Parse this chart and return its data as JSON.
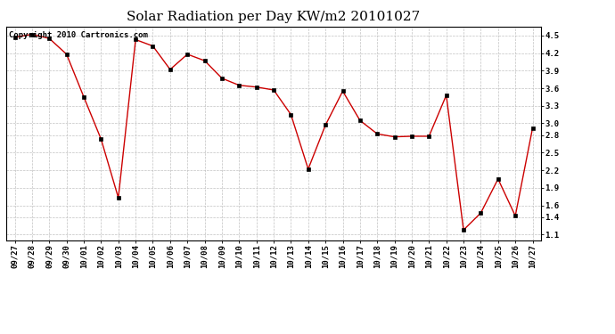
{
  "title": "Solar Radiation per Day KW/m2 20101027",
  "copyright_text": "Copyright 2010 Cartronics.com",
  "x_labels": [
    "09/27",
    "09/28",
    "09/29",
    "09/30",
    "10/01",
    "10/02",
    "10/03",
    "10/04",
    "10/05",
    "10/06",
    "10/07",
    "10/08",
    "10/09",
    "10/10",
    "10/11",
    "10/12",
    "10/13",
    "10/14",
    "10/15",
    "10/16",
    "10/17",
    "10/18",
    "10/19",
    "10/20",
    "10/21",
    "10/22",
    "10/23",
    "10/24",
    "10/25",
    "10/26",
    "10/27"
  ],
  "y_values": [
    4.47,
    4.52,
    4.45,
    4.18,
    3.45,
    2.73,
    1.73,
    4.43,
    4.32,
    3.92,
    4.18,
    4.07,
    3.77,
    3.65,
    3.62,
    3.57,
    3.15,
    2.22,
    2.97,
    3.55,
    3.05,
    2.82,
    2.77,
    2.78,
    2.78,
    3.48,
    1.18,
    1.47,
    2.05,
    1.42,
    2.92
  ],
  "line_color": "#cc0000",
  "marker": "s",
  "marker_size": 2.5,
  "marker_color": "#000000",
  "bg_color": "#ffffff",
  "plot_bg_color": "#ffffff",
  "grid_color": "#bbbbbb",
  "ylim": [
    1.0,
    4.65
  ],
  "yticks": [
    1.1,
    1.4,
    1.6,
    1.9,
    2.2,
    2.5,
    2.8,
    3.0,
    3.3,
    3.6,
    3.9,
    4.2,
    4.5
  ],
  "title_fontsize": 11,
  "tick_fontsize": 6.5,
  "copyright_fontsize": 6.5
}
